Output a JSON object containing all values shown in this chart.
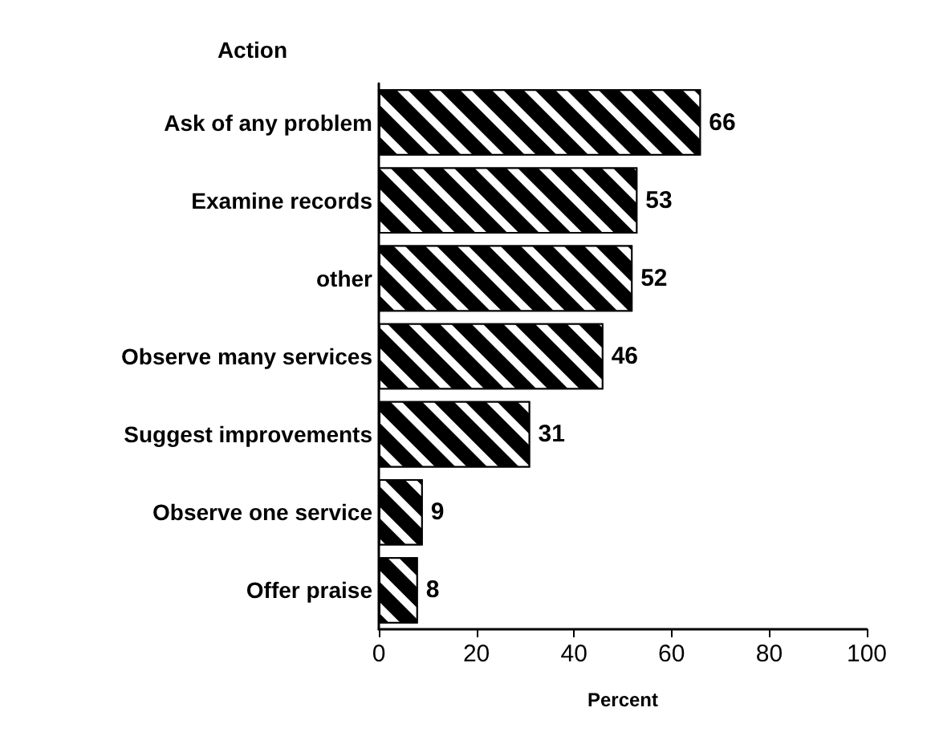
{
  "chart_data": {
    "type": "bar",
    "orientation": "horizontal",
    "ylabel": "Action",
    "xlabel": "Percent",
    "categories": [
      "Ask of any problem",
      "Examine records",
      "other",
      "Observe many services",
      "Suggest improvements",
      "Observe one service",
      "Offer praise"
    ],
    "values": [
      66,
      53,
      52,
      46,
      31,
      9,
      8
    ],
    "color": "#000000",
    "xlim": [
      0,
      100
    ],
    "xticks": [
      0,
      20,
      40,
      60,
      80,
      100
    ],
    "data_labels": true,
    "grid": false
  }
}
